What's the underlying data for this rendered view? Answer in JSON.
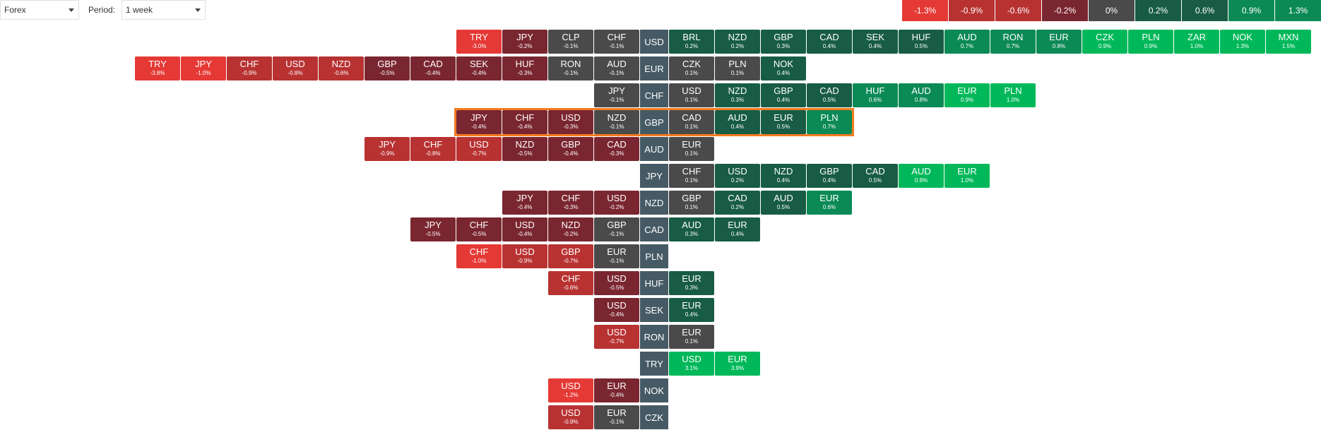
{
  "toolbar": {
    "market_value": "Forex",
    "period_label": "Period:",
    "period_value": "1 week"
  },
  "scale": [
    "-1.3%",
    "-0.9%",
    "-0.6%",
    "-0.2%",
    "0%",
    "0.2%",
    "0.6%",
    "0.9%",
    "1.3%"
  ],
  "colors": {
    "neg_strong": "#e53935",
    "neg_med": "#b83232",
    "neg_dark": "#7a2630",
    "neutral": "#4a4a4a",
    "pos_dark": "#185c45",
    "pos_med": "#0c8a55",
    "pos_strong": "#00b85a",
    "base": "#455a64"
  },
  "rows": [
    {
      "base": "USD",
      "left": [
        {
          "s": "TRY",
          "v": "-3.0%"
        },
        {
          "s": "JPY",
          "v": "-0.2%"
        },
        {
          "s": "CLP",
          "v": "-0.1%"
        },
        {
          "s": "CHF",
          "v": "-0.1%"
        }
      ],
      "right": [
        {
          "s": "BRL",
          "v": "0.2%"
        },
        {
          "s": "NZD",
          "v": "0.2%"
        },
        {
          "s": "GBP",
          "v": "0.3%"
        },
        {
          "s": "CAD",
          "v": "0.4%"
        },
        {
          "s": "SEK",
          "v": "0.4%"
        },
        {
          "s": "HUF",
          "v": "0.5%"
        },
        {
          "s": "AUD",
          "v": "0.7%"
        },
        {
          "s": "RON",
          "v": "0.7%"
        },
        {
          "s": "EUR",
          "v": "0.8%"
        },
        {
          "s": "CZK",
          "v": "0.9%"
        },
        {
          "s": "PLN",
          "v": "0.9%"
        },
        {
          "s": "ZAR",
          "v": "1.0%"
        },
        {
          "s": "NOK",
          "v": "1.3%"
        },
        {
          "s": "MXN",
          "v": "1.5%"
        }
      ]
    },
    {
      "base": "EUR",
      "left": [
        {
          "s": "TRY",
          "v": "-3.8%"
        },
        {
          "s": "JPY",
          "v": "-1.0%"
        },
        {
          "s": "CHF",
          "v": "-0.9%"
        },
        {
          "s": "USD",
          "v": "-0.8%"
        },
        {
          "s": "NZD",
          "v": "-0.6%"
        },
        {
          "s": "GBP",
          "v": "-0.5%"
        },
        {
          "s": "CAD",
          "v": "-0.4%"
        },
        {
          "s": "SEK",
          "v": "-0.4%"
        },
        {
          "s": "HUF",
          "v": "-0.3%"
        },
        {
          "s": "RON",
          "v": "-0.1%"
        },
        {
          "s": "AUD",
          "v": "-0.1%"
        }
      ],
      "right": [
        {
          "s": "CZK",
          "v": "0.1%"
        },
        {
          "s": "PLN",
          "v": "0.1%"
        },
        {
          "s": "NOK",
          "v": "0.4%"
        }
      ]
    },
    {
      "base": "CHF",
      "left": [
        {
          "s": "JPY",
          "v": "-0.1%"
        }
      ],
      "right": [
        {
          "s": "USD",
          "v": "0.1%"
        },
        {
          "s": "NZD",
          "v": "0.3%"
        },
        {
          "s": "GBP",
          "v": "0.4%"
        },
        {
          "s": "CAD",
          "v": "0.5%"
        },
        {
          "s": "HUF",
          "v": "0.6%"
        },
        {
          "s": "AUD",
          "v": "0.8%"
        },
        {
          "s": "EUR",
          "v": "0.9%"
        },
        {
          "s": "PLN",
          "v": "1.0%"
        }
      ]
    },
    {
      "base": "GBP",
      "highlight": true,
      "left": [
        {
          "s": "JPY",
          "v": "-0.4%"
        },
        {
          "s": "CHF",
          "v": "-0.4%"
        },
        {
          "s": "USD",
          "v": "-0.3%"
        },
        {
          "s": "NZD",
          "v": "-0.1%"
        }
      ],
      "right": [
        {
          "s": "CAD",
          "v": "0.1%"
        },
        {
          "s": "AUD",
          "v": "0.4%"
        },
        {
          "s": "EUR",
          "v": "0.5%"
        },
        {
          "s": "PLN",
          "v": "0.7%"
        }
      ]
    },
    {
      "base": "AUD",
      "left": [
        {
          "s": "JPY",
          "v": "-0.9%"
        },
        {
          "s": "CHF",
          "v": "-0.8%"
        },
        {
          "s": "USD",
          "v": "-0.7%"
        },
        {
          "s": "NZD",
          "v": "-0.5%"
        },
        {
          "s": "GBP",
          "v": "-0.4%"
        },
        {
          "s": "CAD",
          "v": "-0.3%"
        }
      ],
      "right": [
        {
          "s": "EUR",
          "v": "0.1%"
        }
      ]
    },
    {
      "base": "JPY",
      "left": [],
      "right": [
        {
          "s": "CHF",
          "v": "0.1%"
        },
        {
          "s": "USD",
          "v": "0.2%"
        },
        {
          "s": "NZD",
          "v": "0.4%"
        },
        {
          "s": "GBP",
          "v": "0.4%"
        },
        {
          "s": "CAD",
          "v": "0.5%"
        },
        {
          "s": "AUD",
          "v": "0.9%"
        },
        {
          "s": "EUR",
          "v": "1.0%"
        }
      ]
    },
    {
      "base": "NZD",
      "left": [
        {
          "s": "JPY",
          "v": "-0.4%"
        },
        {
          "s": "CHF",
          "v": "-0.3%"
        },
        {
          "s": "USD",
          "v": "-0.2%"
        }
      ],
      "right": [
        {
          "s": "GBP",
          "v": "0.1%"
        },
        {
          "s": "CAD",
          "v": "0.2%"
        },
        {
          "s": "AUD",
          "v": "0.5%"
        },
        {
          "s": "EUR",
          "v": "0.6%"
        }
      ]
    },
    {
      "base": "CAD",
      "left": [
        {
          "s": "JPY",
          "v": "-0.5%"
        },
        {
          "s": "CHF",
          "v": "-0.5%"
        },
        {
          "s": "USD",
          "v": "-0.4%"
        },
        {
          "s": "NZD",
          "v": "-0.2%"
        },
        {
          "s": "GBP",
          "v": "-0.1%"
        }
      ],
      "right": [
        {
          "s": "AUD",
          "v": "0.3%"
        },
        {
          "s": "EUR",
          "v": "0.4%"
        }
      ]
    },
    {
      "base": "PLN",
      "left": [
        {
          "s": "CHF",
          "v": "-1.0%"
        },
        {
          "s": "USD",
          "v": "-0.9%"
        },
        {
          "s": "GBP",
          "v": "-0.7%"
        },
        {
          "s": "EUR",
          "v": "-0.1%"
        }
      ],
      "right": []
    },
    {
      "base": "HUF",
      "left": [
        {
          "s": "CHF",
          "v": "-0.6%"
        },
        {
          "s": "USD",
          "v": "-0.5%"
        }
      ],
      "right": [
        {
          "s": "EUR",
          "v": "0.3%"
        }
      ]
    },
    {
      "base": "SEK",
      "left": [
        {
          "s": "USD",
          "v": "-0.4%"
        }
      ],
      "right": [
        {
          "s": "EUR",
          "v": "0.4%"
        }
      ]
    },
    {
      "base": "RON",
      "left": [
        {
          "s": "USD",
          "v": "-0.7%"
        }
      ],
      "right": [
        {
          "s": "EUR",
          "v": "0.1%"
        }
      ]
    },
    {
      "base": "TRY",
      "left": [],
      "right": [
        {
          "s": "USD",
          "v": "3.1%"
        },
        {
          "s": "EUR",
          "v": "3.9%"
        }
      ]
    },
    {
      "base": "NOK",
      "left": [
        {
          "s": "USD",
          "v": "-1.2%"
        },
        {
          "s": "EUR",
          "v": "-0.4%"
        }
      ],
      "right": []
    },
    {
      "base": "CZK",
      "left": [
        {
          "s": "USD",
          "v": "-0.9%"
        },
        {
          "s": "EUR",
          "v": "-0.1%"
        }
      ],
      "right": []
    }
  ]
}
